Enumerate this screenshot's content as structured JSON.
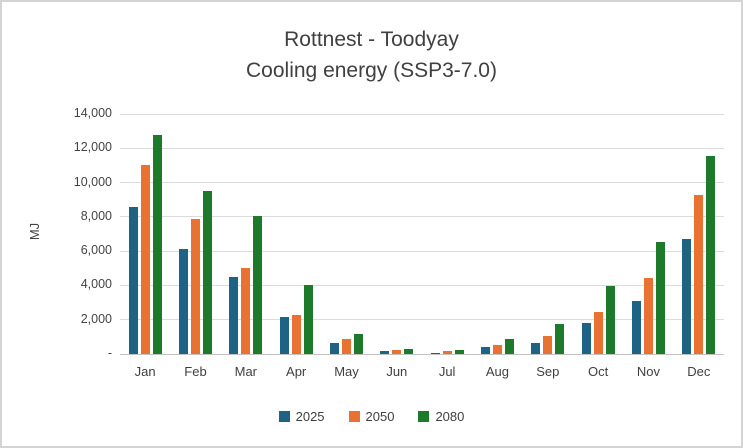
{
  "title": {
    "line1": "Rottnest - Toodyay",
    "line2": "Cooling energy (SSP3-7.0)"
  },
  "chart_data": {
    "type": "bar",
    "title": "Rottnest - Toodyay",
    "subtitle": "Cooling energy (SSP3-7.0)",
    "xlabel": "",
    "ylabel": "MJ",
    "ylim": [
      0,
      14000
    ],
    "grid": "horizontal",
    "legend_position": "bottom",
    "categories": [
      "Jan",
      "Feb",
      "Mar",
      "Apr",
      "May",
      "Jun",
      "Jul",
      "Aug",
      "Sep",
      "Oct",
      "Nov",
      "Dec"
    ],
    "series": [
      {
        "name": "2025",
        "color": "#1E6383",
        "values": [
          8550,
          6100,
          4500,
          2150,
          640,
          150,
          80,
          400,
          650,
          1780,
          3070,
          6700
        ]
      },
      {
        "name": "2050",
        "color": "#E97132",
        "values": [
          11000,
          7850,
          5000,
          2300,
          860,
          230,
          160,
          550,
          1050,
          2430,
          4450,
          9280
        ]
      },
      {
        "name": "2080",
        "color": "#1E7A2B",
        "values": [
          12800,
          9500,
          8050,
          4000,
          1180,
          300,
          230,
          850,
          1750,
          3980,
          6520,
          11540
        ]
      }
    ],
    "yticks": [
      {
        "value": 0,
        "label": "-"
      },
      {
        "value": 2000,
        "label": "2,000"
      },
      {
        "value": 4000,
        "label": "4,000"
      },
      {
        "value": 6000,
        "label": "6,000"
      },
      {
        "value": 8000,
        "label": "8,000"
      },
      {
        "value": 10000,
        "label": "10,000"
      },
      {
        "value": 12000,
        "label": "12,000"
      },
      {
        "value": 14000,
        "label": "14,000"
      }
    ]
  }
}
